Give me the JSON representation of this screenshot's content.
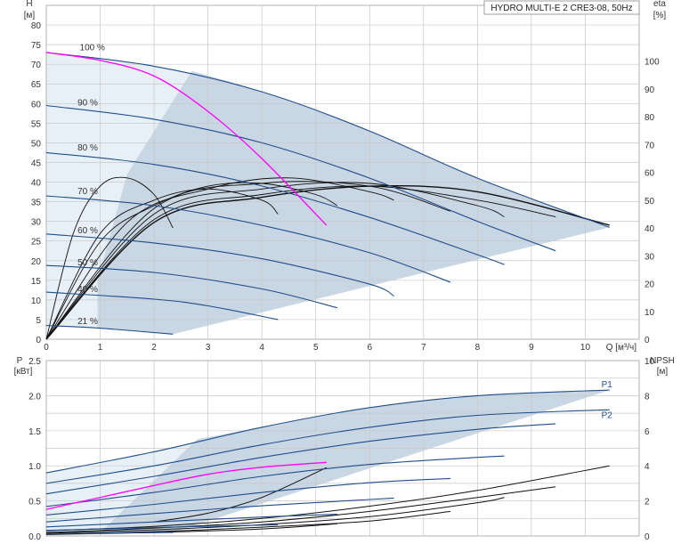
{
  "chart_data": [
    {
      "type": "line",
      "title": "HYDRO MULTI-E 2 CRE3-08, 50Hz",
      "xlabel": "Q [м³/ч]",
      "ylabel_left": [
        "H",
        "[м]"
      ],
      "ylabel_right": [
        "eta",
        "[%]"
      ],
      "xlim": [
        0,
        11
      ],
      "ylim": [
        0,
        85
      ],
      "y2lim": [
        0,
        120
      ],
      "x_ticks": [
        "0",
        "1",
        "2",
        "3",
        "4",
        "5",
        "6",
        "7",
        "8",
        "9",
        "10"
      ],
      "y_ticks": [
        "0",
        "5",
        "10",
        "15",
        "20",
        "25",
        "30",
        "35",
        "40",
        "45",
        "50",
        "55",
        "60",
        "65",
        "70",
        "75",
        "80"
      ],
      "y2_ticks": [
        "0",
        "10",
        "20",
        "30",
        "40",
        "50",
        "60",
        "70",
        "80",
        "90",
        "100"
      ],
      "grid": true,
      "colors": {
        "curve": "#1f4e8c",
        "duty": "#ff00ff",
        "eta": "#111111",
        "area": "#c9d6e3",
        "area_light": "#e8f0f7"
      },
      "speed_labels": [
        {
          "label": "100 %",
          "x": 0.62,
          "y": 73.5
        },
        {
          "label": "90 %",
          "x": 0.58,
          "y": 59.5
        },
        {
          "label": "80 %",
          "x": 0.58,
          "y": 48.0
        },
        {
          "label": "70 %",
          "x": 0.58,
          "y": 37.0
        },
        {
          "label": "60 %",
          "x": 0.58,
          "y": 27.0
        },
        {
          "label": "50 %",
          "x": 0.58,
          "y": 18.8
        },
        {
          "label": "40 %",
          "x": 0.58,
          "y": 12.0
        },
        {
          "label": "21 %",
          "x": 0.58,
          "y": 3.8
        }
      ],
      "series": [
        {
          "name": "100 %",
          "x": [
            0,
            2,
            4,
            6,
            8,
            10.45
          ],
          "y": [
            73,
            69.5,
            63,
            53,
            41,
            28.5
          ]
        },
        {
          "name": "90 %",
          "x": [
            0,
            2,
            4,
            6,
            8,
            9.45
          ],
          "y": [
            59.5,
            56,
            50,
            41,
            30,
            22.5
          ]
        },
        {
          "name": "80 %",
          "x": [
            0,
            2,
            4,
            6,
            8,
            8.5
          ],
          "y": [
            47.5,
            44.5,
            39,
            31,
            21.5,
            19
          ]
        },
        {
          "name": "70 %",
          "x": [
            0,
            2,
            4,
            6,
            7.5
          ],
          "y": [
            36.5,
            34,
            29,
            22,
            14.5
          ]
        },
        {
          "name": "60 %",
          "x": [
            0,
            2,
            4,
            6,
            6.45
          ],
          "y": [
            26.8,
            24.5,
            20.5,
            14,
            11
          ]
        },
        {
          "name": "50 %",
          "x": [
            0,
            2,
            4,
            5.4
          ],
          "y": [
            18.8,
            17,
            12.8,
            8
          ]
        },
        {
          "name": "40 %",
          "x": [
            0,
            2,
            3,
            4.3
          ],
          "y": [
            12,
            10.2,
            8.5,
            5
          ]
        },
        {
          "name": "21 %",
          "x": [
            0,
            1,
            2.35
          ],
          "y": [
            3.5,
            2.8,
            1.3
          ]
        },
        {
          "name": "duty",
          "x": [
            0,
            1,
            2,
            3,
            4,
            5.2
          ],
          "y": [
            73,
            71,
            67,
            58,
            46,
            29
          ]
        }
      ],
      "eta_curves": [
        {
          "x": [
            0,
            0.5,
            1,
            1.5,
            2,
            2.35
          ],
          "y": [
            0,
            38,
            55,
            58,
            52,
            40
          ]
        },
        {
          "x": [
            0,
            1,
            2,
            3,
            4,
            4.3
          ],
          "y": [
            0,
            38,
            50,
            54,
            50,
            45
          ]
        },
        {
          "x": [
            0,
            1,
            2,
            3,
            4,
            5,
            5.4
          ],
          "y": [
            0,
            35,
            48,
            55,
            56,
            52,
            48
          ]
        },
        {
          "x": [
            0,
            1.5,
            3,
            4.5,
            6,
            6.45
          ],
          "y": [
            0,
            42,
            54,
            58,
            53,
            50
          ]
        },
        {
          "x": [
            0,
            2,
            4,
            6,
            7.5
          ],
          "y": [
            0,
            47,
            56,
            55,
            46
          ]
        },
        {
          "x": [
            0,
            2,
            4,
            6,
            8,
            8.5
          ],
          "y": [
            0,
            45,
            54,
            56,
            48,
            44
          ]
        },
        {
          "x": [
            0,
            2,
            4,
            6,
            8,
            9.45
          ],
          "y": [
            0,
            43,
            52,
            55,
            50,
            44
          ]
        },
        {
          "x": [
            0,
            2,
            4,
            6,
            8,
            10.45
          ],
          "y": [
            0,
            42,
            51,
            55,
            53,
            41
          ]
        }
      ]
    },
    {
      "type": "line",
      "ylabel_left": [
        "P",
        "[кВт]"
      ],
      "ylabel_right": [
        "NPSH",
        "[м]"
      ],
      "xlim": [
        0,
        11
      ],
      "ylim": [
        0,
        2.5
      ],
      "y2lim": [
        0,
        10
      ],
      "y_ticks": [
        "0.0",
        "0.5",
        "1.0",
        "1.5",
        "2.0",
        "2.5"
      ],
      "y2_ticks": [
        "0",
        "2",
        "4",
        "6",
        "8",
        "10"
      ],
      "grid": true,
      "series_labels": [
        {
          "label": "P1",
          "x": 10.3,
          "y": 2.12
        },
        {
          "label": "P2",
          "x": 10.3,
          "y": 1.68
        }
      ],
      "series": [
        {
          "name": "P1",
          "x": [
            0,
            2,
            4,
            6,
            8,
            10.45
          ],
          "y": [
            0.9,
            1.2,
            1.55,
            1.83,
            2.0,
            2.08
          ]
        },
        {
          "name": "P2",
          "x": [
            0,
            2,
            4,
            6,
            8,
            10.45
          ],
          "y": [
            0.75,
            1.0,
            1.3,
            1.55,
            1.72,
            1.8
          ]
        },
        {
          "name": "90 %",
          "x": [
            0,
            2,
            4,
            6,
            8,
            9.45
          ],
          "y": [
            0.6,
            0.85,
            1.12,
            1.35,
            1.52,
            1.6
          ]
        },
        {
          "name": "80 %",
          "x": [
            0,
            2,
            4,
            6,
            8,
            8.5
          ],
          "y": [
            0.42,
            0.62,
            0.85,
            1.02,
            1.12,
            1.14
          ]
        },
        {
          "name": "70 %",
          "x": [
            0,
            2,
            4,
            6,
            7.5
          ],
          "y": [
            0.3,
            0.45,
            0.62,
            0.76,
            0.82
          ]
        },
        {
          "name": "60 %",
          "x": [
            0,
            2,
            4,
            6,
            6.45
          ],
          "y": [
            0.2,
            0.32,
            0.43,
            0.52,
            0.54
          ]
        },
        {
          "name": "50 %",
          "x": [
            0,
            2,
            4,
            5.4
          ],
          "y": [
            0.13,
            0.2,
            0.27,
            0.31
          ]
        },
        {
          "name": "40 %",
          "x": [
            0,
            2,
            4.3
          ],
          "y": [
            0.08,
            0.12,
            0.16
          ]
        },
        {
          "name": "21 %",
          "x": [
            0,
            1,
            2.35
          ],
          "y": [
            0.03,
            0.04,
            0.05
          ]
        },
        {
          "name": "duty",
          "x": [
            0,
            1,
            2,
            3,
            4,
            5.2
          ],
          "y": [
            0.38,
            0.55,
            0.72,
            0.88,
            0.98,
            1.05
          ]
        }
      ],
      "npsh": [
        {
          "x": [
            0,
            2,
            4,
            6,
            8,
            10.45
          ],
          "y": [
            0.3,
            0.55,
            1.0,
            1.7,
            2.6,
            4.0
          ]
        },
        {
          "x": [
            0,
            2,
            4,
            6,
            8,
            9.45
          ],
          "y": [
            0.2,
            0.45,
            0.8,
            1.4,
            2.2,
            2.8
          ]
        },
        {
          "x": [
            0,
            2,
            4,
            6,
            8,
            8.5
          ],
          "y": [
            0.15,
            0.35,
            0.65,
            1.1,
            1.9,
            2.2
          ]
        },
        {
          "x": [
            0,
            2,
            4,
            6,
            7.5
          ],
          "y": [
            0.1,
            0.25,
            0.5,
            0.85,
            1.4
          ]
        },
        {
          "x": [
            0,
            2,
            4,
            5.4
          ],
          "y": [
            0.08,
            0.2,
            0.4,
            0.7
          ]
        },
        {
          "x": [
            2,
            3,
            4,
            5.2
          ],
          "y": [
            0.8,
            1.3,
            2.2,
            3.9
          ]
        }
      ]
    }
  ]
}
